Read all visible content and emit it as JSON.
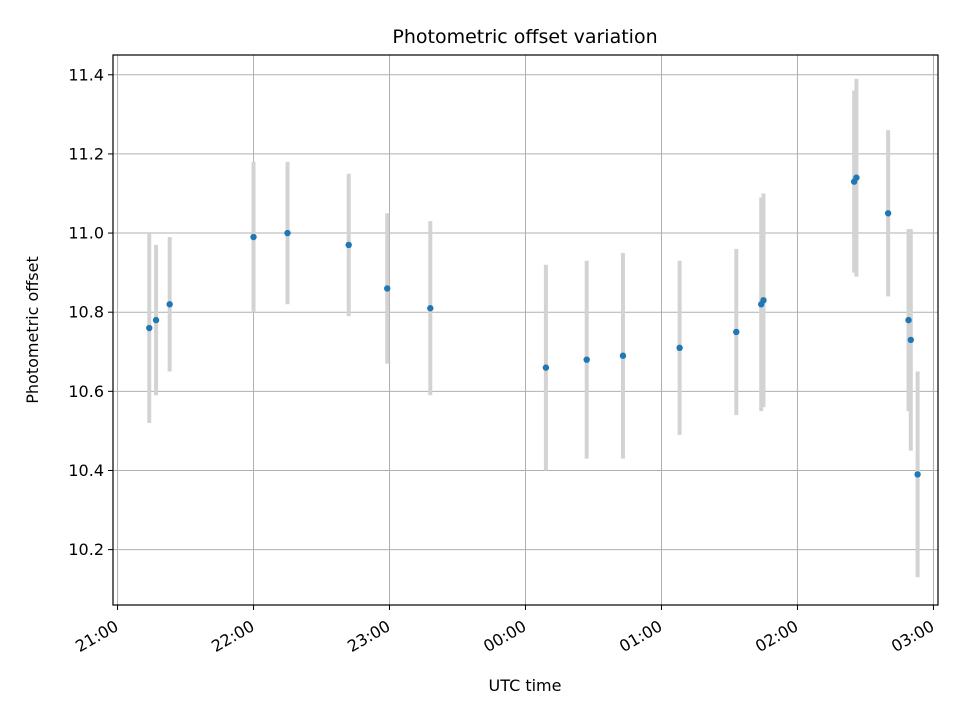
{
  "chart_data": {
    "type": "scatter",
    "title": "Photometric offset variation",
    "xlabel": "UTC time",
    "ylabel": "Photometric offset",
    "x_ticks": [
      "21:00",
      "22:00",
      "23:00",
      "00:00",
      "01:00",
      "02:00",
      "03:00"
    ],
    "y_ticks": [
      "10.2",
      "10.4",
      "10.6",
      "10.8",
      "11.0",
      "11.2",
      "11.4"
    ],
    "xlim": [
      "20:58",
      "03:02"
    ],
    "ylim": [
      10.06,
      11.45
    ],
    "grid": true,
    "errorbar_color": "#d3d3d3",
    "point_color": "#1f77b4",
    "points": [
      {
        "time": "21:14",
        "y": 10.76,
        "err": 0.24
      },
      {
        "time": "21:17",
        "y": 10.78,
        "err": 0.19
      },
      {
        "time": "21:23",
        "y": 10.82,
        "err": 0.17
      },
      {
        "time": "22:00",
        "y": 10.99,
        "err": 0.19
      },
      {
        "time": "22:15",
        "y": 11.0,
        "err": 0.18
      },
      {
        "time": "22:42",
        "y": 10.97,
        "err": 0.18
      },
      {
        "time": "22:59",
        "y": 10.86,
        "err": 0.19
      },
      {
        "time": "23:18",
        "y": 10.81,
        "err": 0.22
      },
      {
        "time": "00:09",
        "y": 10.66,
        "err": 0.26
      },
      {
        "time": "00:27",
        "y": 10.68,
        "err": 0.25
      },
      {
        "time": "00:43",
        "y": 10.69,
        "err": 0.26
      },
      {
        "time": "01:08",
        "y": 10.71,
        "err": 0.22
      },
      {
        "time": "01:33",
        "y": 10.75,
        "err": 0.21
      },
      {
        "time": "01:44",
        "y": 10.82,
        "err": 0.27
      },
      {
        "time": "01:45",
        "y": 10.83,
        "err": 0.27
      },
      {
        "time": "02:25",
        "y": 11.13,
        "err": 0.23
      },
      {
        "time": "02:26",
        "y": 11.14,
        "err": 0.25
      },
      {
        "time": "02:40",
        "y": 11.05,
        "err": 0.21
      },
      {
        "time": "02:49",
        "y": 10.78,
        "err": 0.23
      },
      {
        "time": "02:50",
        "y": 10.73,
        "err": 0.28
      },
      {
        "time": "02:53",
        "y": 10.39,
        "err": 0.26
      }
    ]
  }
}
